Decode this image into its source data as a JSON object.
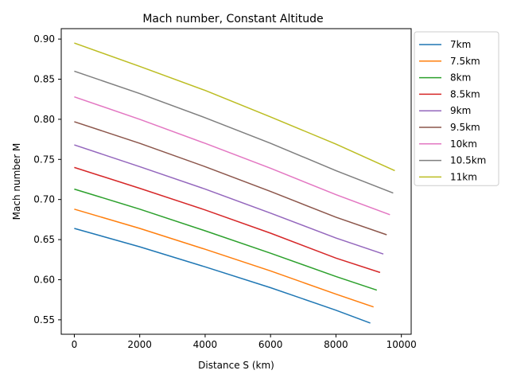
{
  "chart_data": {
    "type": "line",
    "title": "Mach number, Constant Altitude",
    "xlabel": "Distance S (km)",
    "ylabel": "Mach number M",
    "xlim": [
      -400,
      10300
    ],
    "ylim": [
      0.532,
      0.913
    ],
    "xticks": [
      0,
      2000,
      4000,
      6000,
      8000,
      10000
    ],
    "yticks": [
      0.55,
      0.6,
      0.65,
      0.7,
      0.75,
      0.8,
      0.85,
      0.9
    ],
    "ytick_labels": [
      "0.55",
      "0.60",
      "0.65",
      "0.70",
      "0.75",
      "0.80",
      "0.85",
      "0.90"
    ],
    "legend_position": "outside-right-top",
    "grid": false,
    "series": [
      {
        "name": "7km",
        "color": "#1f77b4",
        "x": [
          0,
          2000,
          4000,
          6000,
          8000,
          9050
        ],
        "y": [
          0.664,
          0.641,
          0.616,
          0.59,
          0.562,
          0.546
        ]
      },
      {
        "name": "7.5km",
        "color": "#ff7f0e",
        "x": [
          0,
          2000,
          4000,
          6000,
          8000,
          9150
        ],
        "y": [
          0.688,
          0.664,
          0.638,
          0.611,
          0.582,
          0.566
        ]
      },
      {
        "name": "8km",
        "color": "#2ca02c",
        "x": [
          0,
          2000,
          4000,
          6000,
          8000,
          9250
        ],
        "y": [
          0.713,
          0.688,
          0.661,
          0.633,
          0.604,
          0.587
        ]
      },
      {
        "name": "8.5km",
        "color": "#d62728",
        "x": [
          0,
          2000,
          4000,
          6000,
          8000,
          9350
        ],
        "y": [
          0.74,
          0.714,
          0.687,
          0.658,
          0.627,
          0.609
        ]
      },
      {
        "name": "9km",
        "color": "#9467bd",
        "x": [
          0,
          2000,
          4000,
          6000,
          8000,
          9450
        ],
        "y": [
          0.768,
          0.741,
          0.713,
          0.683,
          0.652,
          0.632
        ]
      },
      {
        "name": "9.5km",
        "color": "#8c564b",
        "x": [
          0,
          2000,
          4000,
          6000,
          8000,
          9550
        ],
        "y": [
          0.797,
          0.77,
          0.741,
          0.71,
          0.678,
          0.656
        ]
      },
      {
        "name": "10km",
        "color": "#e377c2",
        "x": [
          0,
          2000,
          4000,
          6000,
          8000,
          9650
        ],
        "y": [
          0.828,
          0.8,
          0.77,
          0.739,
          0.706,
          0.681
        ]
      },
      {
        "name": "10.5km",
        "color": "#7f7f7f",
        "x": [
          0,
          2000,
          4000,
          6000,
          8000,
          9750
        ],
        "y": [
          0.86,
          0.832,
          0.802,
          0.77,
          0.736,
          0.708
        ]
      },
      {
        "name": "11km",
        "color": "#bcbd22",
        "x": [
          0,
          2000,
          4000,
          6000,
          8000,
          9800
        ],
        "y": [
          0.895,
          0.866,
          0.836,
          0.803,
          0.769,
          0.736
        ]
      }
    ]
  }
}
